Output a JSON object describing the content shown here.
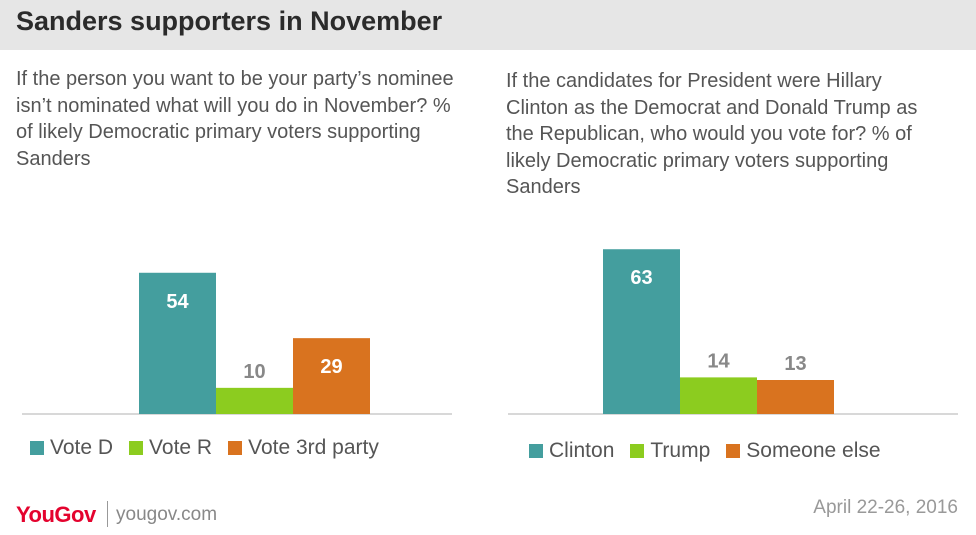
{
  "header": {
    "title": "Sanders supporters  in November"
  },
  "charts": {
    "left": {
      "question": "If the person you want to be your party’s nominee isn’t nominated what will you do in November? % of likely Democratic primary voters supporting Sanders"
    },
    "right": {
      "question": "If the candidates for President were Hillary Clinton as the Democrat and Donald Trump as the Republican, who would you vote for? % of likely Democratic primary voters supporting Sanders"
    }
  },
  "chart_data": [
    {
      "type": "bar",
      "title": "If the person you want to be your party’s nominee isn’t nominated what will you do in November? % of likely Democratic primary voters supporting Sanders",
      "categories": [
        "Vote D",
        "Vote R",
        "Vote 3rd party"
      ],
      "values": [
        54,
        10,
        29
      ],
      "colors": [
        "#449e9e",
        "#8ccc1f",
        "#d9731f"
      ],
      "value_label_colors": [
        "#ffffff",
        "#888888",
        "#ffffff"
      ],
      "ylim": [
        0,
        65
      ],
      "grid": false,
      "legend": "bottom"
    },
    {
      "type": "bar",
      "title": "If the candidates for President were Hillary Clinton as the Democrat and Donald Trump as the Republican, who would you vote for? % of likely Democratic primary voters supporting Sanders",
      "categories": [
        "Clinton",
        "Trump",
        "Someone else"
      ],
      "values": [
        63,
        14,
        13
      ],
      "colors": [
        "#449e9e",
        "#8ccc1f",
        "#d9731f"
      ],
      "value_label_colors": [
        "#ffffff",
        "#ffffff",
        "#ffffff"
      ],
      "ylim": [
        0,
        65
      ],
      "grid": false,
      "legend": "bottom"
    }
  ],
  "footer": {
    "logo": "YouGov",
    "site": "yougov.com",
    "date": "April 22-26, 2016"
  }
}
